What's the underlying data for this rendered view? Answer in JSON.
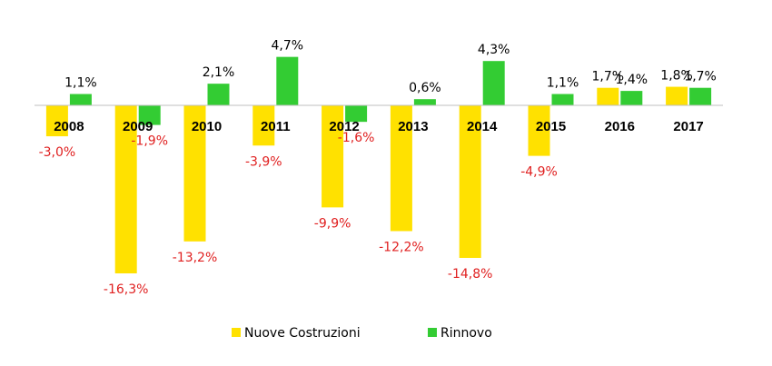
{
  "chart_data": {
    "type": "bar",
    "categories": [
      "2008",
      "2009",
      "2010",
      "2011",
      "2012",
      "2013",
      "2014",
      "2015",
      "2016",
      "2017"
    ],
    "series": [
      {
        "name": "Nuove Costruzioni",
        "color": "#FFE100",
        "values": [
          -3.0,
          -16.3,
          -13.2,
          -3.9,
          -9.9,
          -12.2,
          -14.8,
          -4.9,
          1.7,
          1.8
        ],
        "labels": [
          "-3,0%",
          "-16,3%",
          "-13,2%",
          "-3,9%",
          "-9,9%",
          "-12,2%",
          "-14,8%",
          "-4,9%",
          "1,7%",
          "1,8%"
        ]
      },
      {
        "name": "Rinnovo",
        "color": "#33CC33",
        "values": [
          1.1,
          -1.9,
          2.1,
          4.7,
          -1.6,
          0.6,
          4.3,
          1.1,
          1.4,
          1.7
        ],
        "labels": [
          "1,1%",
          "-1,9%",
          "2,1%",
          "4,7%",
          "-1,6%",
          "0,6%",
          "4,3%",
          "1,1%",
          "1,4%",
          "1,7%"
        ]
      }
    ],
    "negative_label_color": "#E02020",
    "positive_label_color": "#000000",
    "axis_line_color": "#BFBFBF",
    "grid": false,
    "legend_position": "bottom"
  }
}
